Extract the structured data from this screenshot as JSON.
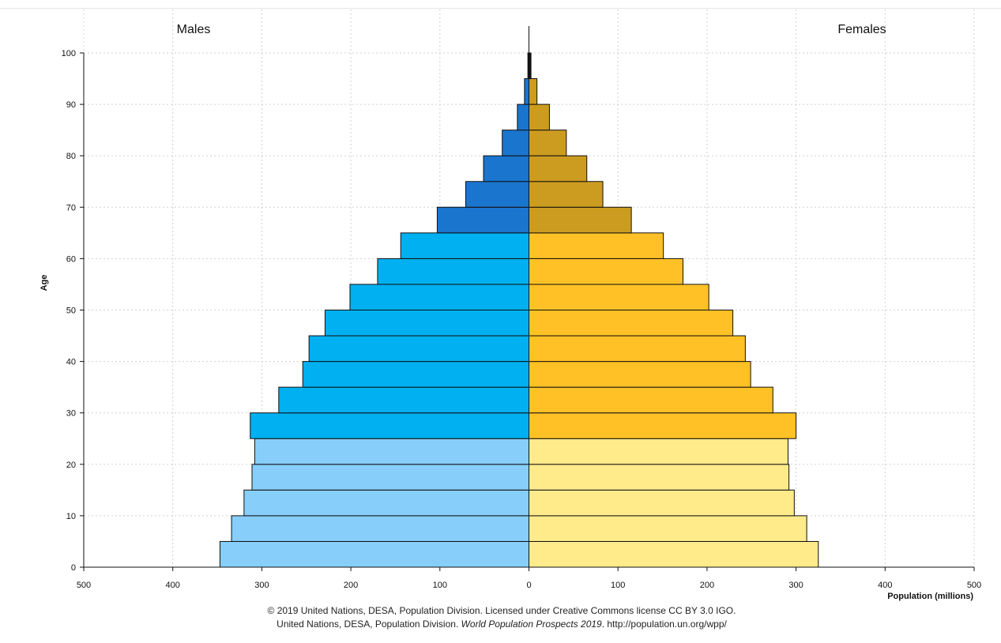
{
  "chart_data": {
    "type": "bar",
    "orientation": "horizontal-pyramid",
    "left_label": "Males",
    "right_label": "Females",
    "ylabel": "Age",
    "xlabel": "Population (millions)",
    "xlim": [
      -500,
      500
    ],
    "ylim": [
      0,
      100
    ],
    "x_ticks": [
      500,
      400,
      300,
      200,
      100,
      0,
      100,
      200,
      300,
      400,
      500
    ],
    "y_ticks": [
      0,
      10,
      20,
      30,
      40,
      50,
      60,
      70,
      80,
      90,
      100
    ],
    "grid": true,
    "age_groups": [
      "0-4",
      "5-9",
      "10-14",
      "15-19",
      "20-24",
      "25-29",
      "30-34",
      "35-39",
      "40-44",
      "45-49",
      "50-54",
      "55-59",
      "60-64",
      "65-69",
      "70-74",
      "75-79",
      "80-84",
      "85-89",
      "90-94",
      "95-99",
      "100+"
    ],
    "series": [
      {
        "name": "Males",
        "values": [
          347,
          334,
          320,
          311,
          308,
          313,
          281,
          254,
          247,
          229,
          201,
          170,
          144,
          103,
          71,
          51,
          30,
          13,
          5,
          1.2,
          0.1
        ]
      },
      {
        "name": "Females",
        "values": [
          325,
          312,
          298,
          292,
          291,
          300,
          274,
          249,
          243,
          229,
          202,
          173,
          151,
          115,
          83,
          65,
          42,
          23,
          9,
          2.3,
          0.3
        ]
      }
    ],
    "colors": {
      "male_young": "#87cefa",
      "male_working": "#00b0f0",
      "male_old": "#1a75cf",
      "female_young": "#ffeb8a",
      "female_working": "#ffc125",
      "female_old": "#cc9c20",
      "oldest": "#111111"
    }
  },
  "footer": {
    "line1": "© 2019 United Nations, DESA, Population Division. Licensed under Creative Commons license CC BY 3.0 IGO.",
    "line2_a": "United Nations, DESA, Population Division. ",
    "line2_italic": "World Population Prospects 2019",
    "line2_b": ". http://population.un.org/wpp/"
  }
}
